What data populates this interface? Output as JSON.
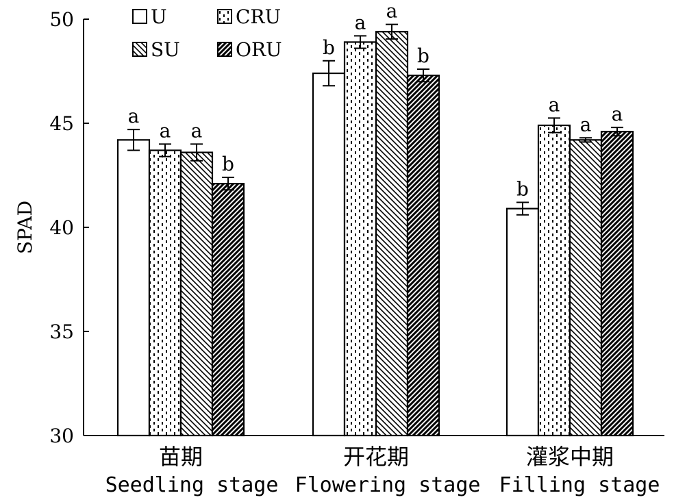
{
  "chart_data": {
    "type": "bar",
    "title": "",
    "xlabel": "",
    "ylabel": "SPAD",
    "ylim": [
      30,
      50
    ],
    "yticks": [
      "30",
      "35",
      "40",
      "45",
      "50"
    ],
    "grid": false,
    "legend_position": "top-left",
    "categories": [
      {
        "cn": "苗期",
        "en": "Seedling stage"
      },
      {
        "cn": "开花期",
        "en": "Flowering stage"
      },
      {
        "cn": "灌浆中期",
        "en": "Filling stage"
      }
    ],
    "series": [
      {
        "name": "U",
        "pattern": "open",
        "values": [
          44.2,
          47.4,
          40.9
        ],
        "errors": [
          0.5,
          0.6,
          0.3
        ],
        "letters": [
          "a",
          "b",
          "b"
        ]
      },
      {
        "name": "CRU",
        "pattern": "dotted",
        "values": [
          43.7,
          48.9,
          44.9
        ],
        "errors": [
          0.3,
          0.3,
          0.35
        ],
        "letters": [
          "a",
          "a",
          "a"
        ]
      },
      {
        "name": "SU",
        "pattern": "hatch-light",
        "values": [
          43.6,
          49.4,
          44.2
        ],
        "errors": [
          0.4,
          0.35,
          0.1
        ],
        "letters": [
          "a",
          "a",
          "a"
        ]
      },
      {
        "name": "ORU",
        "pattern": "hatch-dense",
        "values": [
          42.1,
          47.3,
          44.6
        ],
        "errors": [
          0.3,
          0.3,
          0.2
        ],
        "letters": [
          "b",
          "b",
          "a"
        ]
      }
    ]
  }
}
